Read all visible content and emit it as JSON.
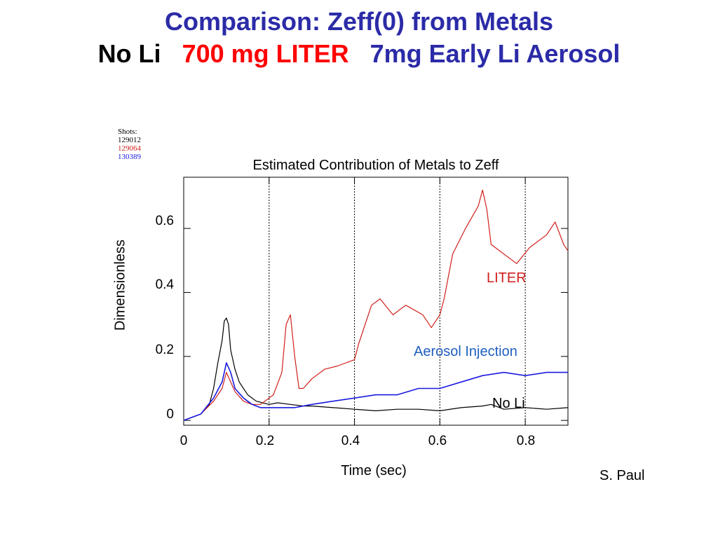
{
  "slide": {
    "title_line1": "Comparison: Zeff(0) from Metals",
    "title_line2_parts": [
      {
        "text": "No Li",
        "color": "#000000"
      },
      {
        "text": "700 mg LITER",
        "color": "#ff0000"
      },
      {
        "text": "7mg Early Li Aerosol",
        "color": "#2b2ba8"
      }
    ],
    "title_color": "#2b2ba8",
    "author": "S. Paul"
  },
  "shots_legend": {
    "header": "Shots:",
    "entries": [
      {
        "label": "129012",
        "color": "#000000"
      },
      {
        "label": "129064",
        "color": "#d0201b"
      },
      {
        "label": "130389",
        "color": "#1a1ae0"
      }
    ]
  },
  "chart_data": {
    "type": "line",
    "title": "Estimated Contribution of Metals to Zeff",
    "xlabel": "Time (sec)",
    "ylabel": "Dimensionless",
    "xlim": [
      0,
      0.9
    ],
    "ylim": [
      -0.015,
      0.76
    ],
    "x_ticks": [
      "0",
      "0.2",
      "0.4",
      "0.6",
      "0.8"
    ],
    "y_ticks": [
      "0",
      "0.2",
      "0.4",
      "0.6"
    ],
    "x_tick_values": [
      0,
      0.2,
      0.4,
      0.6,
      0.8
    ],
    "y_tick_values": [
      0,
      0.2,
      0.4,
      0.6
    ],
    "vertical_dotted_lines": [
      0.2,
      0.4,
      0.6,
      0.8
    ],
    "annotations": [
      {
        "text": "LITER",
        "color": "#d0201b"
      },
      {
        "text": "Aerosol Injection",
        "color": "#1f5fbf"
      },
      {
        "text": "No Li",
        "color": "#000000"
      }
    ],
    "series": [
      {
        "color": "#000000",
        "x": [
          0,
          0.02,
          0.04,
          0.06,
          0.07,
          0.08,
          0.09,
          0.095,
          0.1,
          0.105,
          0.11,
          0.12,
          0.13,
          0.14,
          0.15,
          0.17,
          0.2,
          0.22,
          0.25,
          0.28,
          0.3,
          0.35,
          0.4,
          0.45,
          0.5,
          0.55,
          0.6,
          0.65,
          0.7,
          0.72,
          0.75,
          0.8,
          0.85,
          0.9
        ],
        "y": [
          0.0,
          0.01,
          0.02,
          0.05,
          0.1,
          0.18,
          0.25,
          0.31,
          0.32,
          0.3,
          0.22,
          0.16,
          0.12,
          0.1,
          0.08,
          0.06,
          0.05,
          0.055,
          0.05,
          0.045,
          0.045,
          0.04,
          0.035,
          0.03,
          0.035,
          0.035,
          0.03,
          0.04,
          0.045,
          0.05,
          0.035,
          0.04,
          0.035,
          0.04
        ]
      },
      {
        "color": "#d0201b",
        "x": [
          0,
          0.04,
          0.07,
          0.09,
          0.1,
          0.11,
          0.12,
          0.14,
          0.16,
          0.18,
          0.2,
          0.21,
          0.23,
          0.24,
          0.25,
          0.26,
          0.27,
          0.28,
          0.3,
          0.33,
          0.36,
          0.4,
          0.41,
          0.44,
          0.46,
          0.49,
          0.52,
          0.56,
          0.58,
          0.6,
          0.61,
          0.63,
          0.66,
          0.69,
          0.7,
          0.71,
          0.72,
          0.74,
          0.78,
          0.81,
          0.85,
          0.87,
          0.89,
          0.9
        ],
        "y": [
          0.0,
          0.02,
          0.06,
          0.1,
          0.15,
          0.12,
          0.09,
          0.06,
          0.05,
          0.05,
          0.07,
          0.08,
          0.15,
          0.3,
          0.33,
          0.2,
          0.1,
          0.1,
          0.13,
          0.16,
          0.17,
          0.19,
          0.24,
          0.36,
          0.38,
          0.33,
          0.36,
          0.33,
          0.29,
          0.33,
          0.38,
          0.52,
          0.6,
          0.67,
          0.72,
          0.66,
          0.55,
          0.53,
          0.49,
          0.54,
          0.58,
          0.62,
          0.55,
          0.53
        ]
      },
      {
        "color": "#1a1ae0",
        "x": [
          0,
          0.04,
          0.07,
          0.09,
          0.1,
          0.11,
          0.12,
          0.14,
          0.16,
          0.18,
          0.2,
          0.22,
          0.26,
          0.3,
          0.35,
          0.4,
          0.45,
          0.5,
          0.55,
          0.6,
          0.65,
          0.7,
          0.75,
          0.8,
          0.85,
          0.9
        ],
        "y": [
          0.0,
          0.02,
          0.07,
          0.12,
          0.18,
          0.15,
          0.1,
          0.07,
          0.05,
          0.04,
          0.04,
          0.04,
          0.04,
          0.05,
          0.06,
          0.07,
          0.08,
          0.08,
          0.1,
          0.1,
          0.12,
          0.14,
          0.15,
          0.14,
          0.15,
          0.15
        ]
      }
    ]
  }
}
